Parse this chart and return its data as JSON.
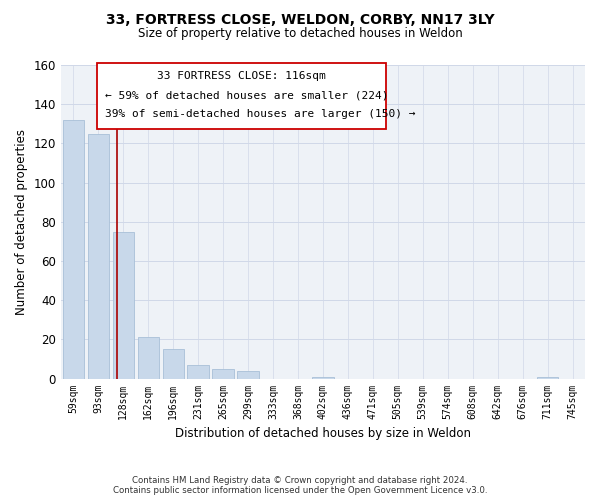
{
  "title1": "33, FORTRESS CLOSE, WELDON, CORBY, NN17 3LY",
  "title2": "Size of property relative to detached houses in Weldon",
  "xlabel": "Distribution of detached houses by size in Weldon",
  "ylabel": "Number of detached properties",
  "bar_labels": [
    "59sqm",
    "93sqm",
    "128sqm",
    "162sqm",
    "196sqm",
    "231sqm",
    "265sqm",
    "299sqm",
    "333sqm",
    "368sqm",
    "402sqm",
    "436sqm",
    "471sqm",
    "505sqm",
    "539sqm",
    "574sqm",
    "608sqm",
    "642sqm",
    "676sqm",
    "711sqm",
    "745sqm"
  ],
  "bar_values": [
    132,
    125,
    75,
    21,
    15,
    7,
    5,
    4,
    0,
    0,
    1,
    0,
    0,
    0,
    0,
    0,
    0,
    0,
    0,
    1,
    0
  ],
  "bar_color": "#c8d8ea",
  "bar_edge_color": "#a8c0d8",
  "ylim": [
    0,
    160
  ],
  "yticks": [
    0,
    20,
    40,
    60,
    80,
    100,
    120,
    140,
    160
  ],
  "vline_color": "#aa0000",
  "annotation_title": "33 FORTRESS CLOSE: 116sqm",
  "annotation_line1": "← 59% of detached houses are smaller (224)",
  "annotation_line2": "39% of semi-detached houses are larger (150) →",
  "footer1": "Contains HM Land Registry data © Crown copyright and database right 2024.",
  "footer2": "Contains public sector information licensed under the Open Government Licence v3.0.",
  "bg_color": "#eef2f7",
  "grid_color": "#d0d8e8"
}
